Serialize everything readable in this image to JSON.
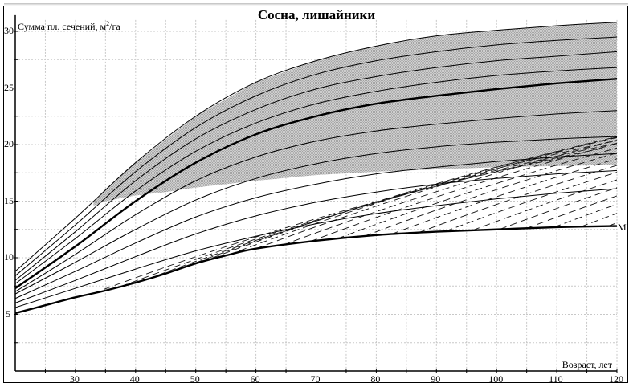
{
  "chart_data": {
    "type": "line",
    "title": "Сосна, лишайники",
    "ylabel": "Сумма пл. сечений, м²/га",
    "ylabel_parts": {
      "main": "Сумма пл. сечений, м",
      "sup": "2",
      "tail": "/га"
    },
    "xlabel": "Возраст, лет",
    "xlim": [
      20,
      120
    ],
    "ylim": [
      0,
      31
    ],
    "x_ticks": [
      30,
      40,
      50,
      60,
      70,
      80,
      90,
      100,
      110,
      120
    ],
    "y_ticks": [
      5,
      10,
      15,
      20,
      25,
      30
    ],
    "grid": true,
    "legend": null,
    "annotations": [
      {
        "text": "M",
        "x": 120,
        "y": 12.8
      }
    ],
    "shaded_region": {
      "description": "Gray textured band covering the upper family of curves",
      "lower_boundary": {
        "x": [
          33,
          35,
          40,
          45,
          50,
          60,
          70,
          80,
          90,
          100,
          110,
          120
        ],
        "y": [
          14.6,
          15.0,
          15.5,
          15.8,
          16.2,
          16.8,
          17.3,
          17.6,
          17.8,
          18.0,
          18.1,
          18.2
        ]
      },
      "upper_boundary": "top solid curve"
    },
    "series": [
      {
        "name": "M",
        "style": "thick",
        "x": [
          20,
          25,
          30,
          35,
          40,
          45,
          50,
          55,
          60,
          70,
          80,
          90,
          100,
          110,
          120
        ],
        "y": [
          5.1,
          5.8,
          6.5,
          7.1,
          7.8,
          8.6,
          9.5,
          10.2,
          10.8,
          11.5,
          12.0,
          12.3,
          12.5,
          12.7,
          12.8
        ]
      },
      {
        "name": "curve-1",
        "style": "solid",
        "x": [
          20,
          30,
          40,
          50,
          60,
          70,
          80,
          90,
          100,
          110,
          120
        ],
        "y": [
          5.6,
          7.3,
          9.0,
          10.6,
          11.9,
          13.0,
          13.9,
          14.6,
          15.2,
          15.7,
          16.1
        ]
      },
      {
        "name": "curve-2",
        "style": "solid",
        "x": [
          20,
          30,
          40,
          50,
          60,
          70,
          80,
          90,
          100,
          110,
          120
        ],
        "y": [
          6.0,
          8.0,
          10.1,
          12.1,
          13.7,
          14.9,
          15.8,
          16.5,
          17.0,
          17.4,
          17.7
        ]
      },
      {
        "name": "curve-3",
        "style": "solid",
        "x": [
          20,
          30,
          40,
          50,
          60,
          70,
          80,
          90,
          100,
          110,
          120
        ],
        "y": [
          6.4,
          8.8,
          11.3,
          13.6,
          15.3,
          16.5,
          17.4,
          18.0,
          18.5,
          18.9,
          19.2
        ]
      },
      {
        "name": "curve-4",
        "style": "solid",
        "x": [
          20,
          30,
          40,
          50,
          60,
          70,
          80,
          90,
          100,
          110,
          120
        ],
        "y": [
          6.8,
          9.6,
          12.5,
          15.1,
          17.0,
          18.3,
          19.2,
          19.8,
          20.2,
          20.5,
          20.7
        ]
      },
      {
        "name": "curve-5",
        "style": "thick",
        "x": [
          20,
          30,
          40,
          50,
          60,
          70,
          80,
          90,
          100,
          110,
          120
        ],
        "y": [
          7.3,
          11.0,
          15.0,
          18.4,
          20.9,
          22.5,
          23.6,
          24.3,
          24.9,
          25.4,
          25.8
        ]
      },
      {
        "name": "curve-6",
        "style": "solid",
        "x": [
          20,
          30,
          40,
          50,
          60,
          70,
          80,
          90,
          100,
          110,
          120
        ],
        "y": [
          7.0,
          10.3,
          13.8,
          16.8,
          18.9,
          20.3,
          21.2,
          21.8,
          22.3,
          22.7,
          23.0
        ]
      },
      {
        "name": "curve-7",
        "style": "solid",
        "x": [
          20,
          30,
          40,
          50,
          60,
          70,
          80,
          90,
          100,
          110,
          120
        ],
        "y": [
          7.7,
          11.7,
          15.9,
          19.4,
          21.9,
          23.6,
          24.7,
          25.5,
          26.1,
          26.5,
          26.8
        ]
      },
      {
        "name": "curve-8",
        "style": "solid",
        "x": [
          20,
          30,
          40,
          50,
          60,
          70,
          80,
          90,
          100,
          110,
          120
        ],
        "y": [
          8.0,
          12.3,
          16.8,
          20.5,
          23.1,
          24.9,
          26.0,
          26.8,
          27.4,
          27.8,
          28.2
        ]
      },
      {
        "name": "curve-9",
        "style": "solid",
        "x": [
          20,
          30,
          40,
          50,
          60,
          70,
          80,
          90,
          100,
          110,
          120
        ],
        "y": [
          8.4,
          12.9,
          17.6,
          21.5,
          24.3,
          26.2,
          27.4,
          28.2,
          28.8,
          29.2,
          29.5
        ]
      },
      {
        "name": "curve-10",
        "style": "solid",
        "x": [
          20,
          30,
          40,
          50,
          60,
          70,
          80,
          90,
          100,
          110,
          120
        ],
        "y": [
          8.8,
          13.5,
          18.4,
          22.5,
          25.5,
          27.4,
          28.7,
          29.6,
          30.1,
          30.5,
          30.8
        ]
      }
    ],
    "dashed_lines": {
      "description": "Family of parallel dashed diagonal lines rising to the right, between curve M and the top curve",
      "count": 20,
      "slope_per_year": 0.14
    }
  },
  "labels": {
    "title": "Сосна, лишайники",
    "ylabel_main": "Сумма пл. сечений, м",
    "ylabel_sup": "2",
    "ylabel_tail": "/га",
    "xlabel": "Возраст, лет",
    "series_end_label": "M"
  }
}
